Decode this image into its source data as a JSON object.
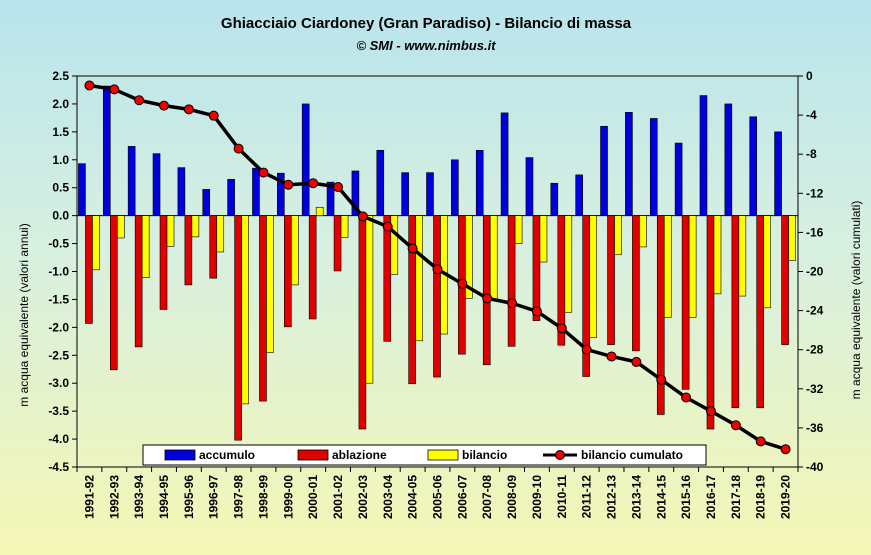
{
  "chart_data": {
    "type": "bar",
    "title": "Ghiacciaio Ciardoney (Gran Paradiso) - Bilancio di massa",
    "subtitle": "© SMI - www.nimbus.it",
    "ylabel_left": "m acqua equivalente  (valori annui)",
    "ylabel_right": "m acqua equivalente  (valori cumulati)",
    "ylim_left": [
      -4.5,
      2.5
    ],
    "ylim_right": [
      -40,
      0
    ],
    "yticks_left": [
      "2.5",
      "2.0",
      "1.5",
      "1.0",
      "0.5",
      "0.0",
      "-0.5",
      "-1.0",
      "-1.5",
      "-2.0",
      "-2.5",
      "-3.0",
      "-3.5",
      "-4.0",
      "-4.5"
    ],
    "yticks_right": [
      "0",
      "-4",
      "-8",
      "-12",
      "-16",
      "-20",
      "-24",
      "-28",
      "-32",
      "-36",
      "-40"
    ],
    "legend_position": "bottom-inside",
    "colors": {
      "accumulo": "#0000dd",
      "ablazione": "#e00000",
      "bilancio": "#ffff00",
      "cumulato_line": "#000000",
      "cumulato_marker": "#ee0000"
    },
    "categories": [
      "1991-92",
      "1992-93",
      "1993-94",
      "1994-95",
      "1995-96",
      "1996-97",
      "1997-98",
      "1998-99",
      "1999-00",
      "2000-01",
      "2001-02",
      "2002-03",
      "2003-04",
      "2004-05",
      "2005-06",
      "2006-07",
      "2007-08",
      "2008-09",
      "2009-10",
      "2010-11",
      "2011-12",
      "2012-13",
      "2013-14",
      "2014-15",
      "2015-16",
      "2016-17",
      "2017-18",
      "2018-19",
      "2019-20"
    ],
    "series": [
      {
        "name": "accumulo",
        "axis": "left",
        "values": [
          0.93,
          2.32,
          1.24,
          1.11,
          0.86,
          0.47,
          0.65,
          0.85,
          0.76,
          2.0,
          0.6,
          0.8,
          1.17,
          0.77,
          0.77,
          1.0,
          1.17,
          1.84,
          1.04,
          0.58,
          0.73,
          1.6,
          1.85,
          1.74,
          1.3,
          2.15,
          2.0,
          1.77,
          1.5
        ]
      },
      {
        "name": "ablazione",
        "axis": "left",
        "values": [
          -1.93,
          -2.76,
          -2.35,
          -1.68,
          -1.24,
          -1.12,
          -4.02,
          -3.32,
          -1.99,
          -1.85,
          -0.99,
          -3.82,
          -2.25,
          -3.01,
          -2.89,
          -2.48,
          -2.67,
          -2.34,
          -1.88,
          -2.32,
          -2.88,
          -2.31,
          -2.42,
          -3.56,
          -3.11,
          -3.82,
          -3.44,
          -3.44,
          -2.31
        ]
      },
      {
        "name": "bilancio",
        "axis": "left",
        "values": [
          -0.97,
          -0.4,
          -1.11,
          -0.55,
          -0.38,
          -0.65,
          -3.37,
          -2.45,
          -1.24,
          0.15,
          -0.39,
          -3.0,
          -1.05,
          -2.24,
          -2.12,
          -1.48,
          -1.5,
          -0.5,
          -0.83,
          -1.73,
          -2.18,
          -0.7,
          -0.56,
          -1.82,
          -1.82,
          -1.4,
          -1.44,
          -1.65,
          -0.8
        ]
      },
      {
        "name": "bilancio cumulato",
        "axis": "right",
        "values": [
          -0.97,
          -1.37,
          -2.48,
          -3.03,
          -3.41,
          -4.06,
          -7.43,
          -9.88,
          -11.12,
          -10.97,
          -11.36,
          -14.36,
          -15.41,
          -17.65,
          -19.77,
          -21.25,
          -22.75,
          -23.25,
          -24.08,
          -25.81,
          -27.99,
          -28.69,
          -29.25,
          -31.07,
          -32.89,
          -34.29,
          -35.73,
          -37.38,
          -38.18
        ]
      }
    ]
  }
}
